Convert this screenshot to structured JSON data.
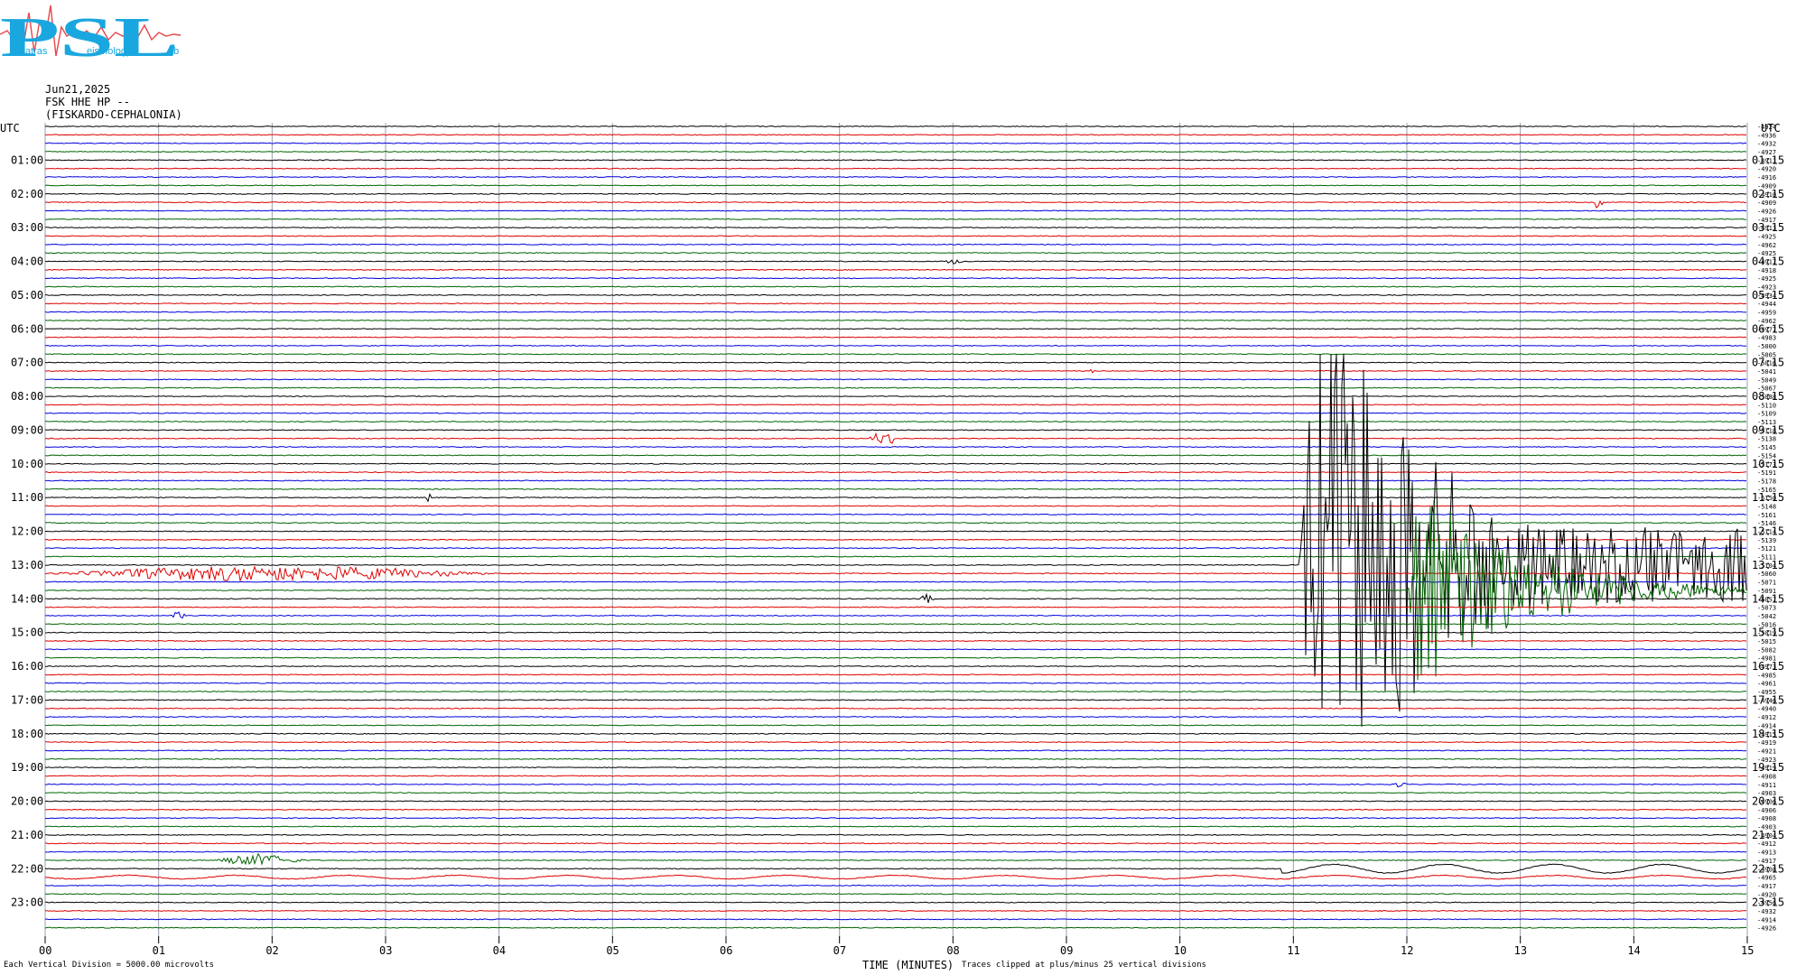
{
  "logo": {
    "text": "PSL",
    "lines": [
      "atras",
      "eismology",
      "ab"
    ],
    "colors": {
      "letters": "#1aa7df",
      "trace": "#e8464a"
    }
  },
  "header": {
    "date": "Jun21,2025",
    "station": "FSK HHE HP --",
    "location": "(FISKARDO-CEPHALONIA)"
  },
  "footer": {
    "scale_note": "Each Vertical Division = 5000.00 microvolts",
    "x_label": "TIME (MINUTES)",
    "clip_note": "Traces clipped at plus/minus 25 vertical divisions"
  },
  "colors": {
    "trace_cycle": [
      "#000000",
      "#dd0000",
      "#0000dd",
      "#006400"
    ],
    "grid": "#9aa0ad"
  },
  "chart_data": {
    "type": "line",
    "subtype": "helicorder",
    "y_left_header": "UTC",
    "y_right_header": "UTC",
    "rows_per_hour": 4,
    "minutes_per_row": 15,
    "xlim": [
      0,
      15
    ],
    "x_ticks": [
      "00",
      "01",
      "02",
      "03",
      "04",
      "05",
      "06",
      "07",
      "08",
      "09",
      "10",
      "11",
      "12",
      "13",
      "14",
      "15"
    ],
    "left_hour_labels": [
      "01:00",
      "02:00",
      "03:00",
      "04:00",
      "05:00",
      "06:00",
      "07:00",
      "08:00",
      "09:00",
      "10:00",
      "11:00",
      "12:00",
      "13:00",
      "14:00",
      "15:00",
      "16:00",
      "17:00",
      "18:00",
      "19:00",
      "20:00",
      "21:00",
      "22:00",
      "23:00"
    ],
    "right_hour_labels": [
      "01:15",
      "02:15",
      "03:15",
      "04:15",
      "05:15",
      "06:15",
      "07:15",
      "08:15",
      "09:15",
      "10:15",
      "11:15",
      "12:15",
      "13:15",
      "14:15",
      "15:15",
      "16:15",
      "17:15",
      "18:15",
      "19:15",
      "20:15",
      "21:15",
      "22:15",
      "23:15"
    ],
    "row_offsets": [
      "-4924",
      "-4936",
      "-4932",
      "-4927",
      "-4911",
      "-4920",
      "-4916",
      "-4909",
      "-4910",
      "-4909",
      "-4926",
      "-4917",
      "-4913",
      "-4925",
      "-4962",
      "-4925",
      "-4917",
      "-4918",
      "-4925",
      "-4923",
      "-4934",
      "-4944",
      "-4959",
      "-4962",
      "-4977",
      "-4983",
      "-5000",
      "-5005",
      "-5016",
      "-5041",
      "-5049",
      "-5067",
      "-5088",
      "-5110",
      "-5109",
      "-5113",
      "-5118",
      "-5138",
      "-5145",
      "-5154",
      "-5173",
      "-5191",
      "-5178",
      "-5165",
      "-5150",
      "-5148",
      "-5161",
      "-5146",
      "-5114",
      "-5139",
      "-5121",
      "-5111",
      "-5104",
      "-5060",
      "-5071",
      "-5091",
      "-5057",
      "-5073",
      "-5042",
      "-5016",
      "-5019",
      "-5015",
      "-5082",
      "-4981",
      "-4973",
      "-4985",
      "-4961",
      "-4955",
      "-4946",
      "-4940",
      "-4912",
      "-4914",
      "-4915",
      "-4919",
      "-4921",
      "-4923",
      "-4919",
      "-4908",
      "-4911",
      "-4903",
      "-4906",
      "-4906",
      "-4908",
      "-4903",
      "-4904",
      "-4912",
      "-4913",
      "-4917",
      "-4908",
      "-4965",
      "-4917",
      "-4920",
      "-4956",
      "-4932",
      "-4914",
      "-4926"
    ],
    "events": [
      {
        "row": 9,
        "minute": 13.65,
        "amplitude": 0.6,
        "duration_min": 0.08
      },
      {
        "row": 16,
        "minute": 7.9,
        "amplitude": 0.2,
        "duration_min": 0.2
      },
      {
        "row": 29,
        "minute": 9.2,
        "amplitude": 0.15,
        "duration_min": 0.05
      },
      {
        "row": 37,
        "minute": 7.25,
        "amplitude": 1.0,
        "duration_min": 0.25
      },
      {
        "row": 44,
        "minute": 3.35,
        "amplitude": 0.7,
        "duration_min": 0.06
      },
      {
        "row": 52,
        "minute": 11.05,
        "amplitude": 25,
        "duration_min": 3.95,
        "type": "earthquake"
      },
      {
        "row": 53,
        "minute": 0.0,
        "amplitude": 0.6,
        "duration_min": 4.0
      },
      {
        "row": 55,
        "minute": 12.0,
        "amplitude": 9,
        "duration_min": 3.0,
        "type": "coda"
      },
      {
        "row": 56,
        "minute": 7.7,
        "amplitude": 0.35,
        "duration_min": 0.15
      },
      {
        "row": 58,
        "minute": 1.1,
        "amplitude": 0.3,
        "duration_min": 0.15
      },
      {
        "row": 78,
        "minute": 11.9,
        "amplitude": 0.4,
        "duration_min": 0.1
      },
      {
        "row": 89,
        "minute": 0.0,
        "amplitude": 0.5,
        "duration_min": 15.0,
        "type": "long-period"
      },
      {
        "row": 88,
        "minute": 10.9,
        "amplitude": 1.2,
        "duration_min": 4.1,
        "type": "long-period"
      },
      {
        "row": 87,
        "minute": 1.5,
        "amplitude": 0.5,
        "duration_min": 0.8
      }
    ],
    "grid": true
  }
}
